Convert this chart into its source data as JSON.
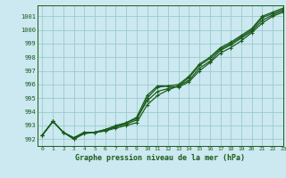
{
  "title": "Graphe pression niveau de la mer (hPa)",
  "bg_color": "#cce8f0",
  "grid_color": "#99cccc",
  "line_color": "#1a5c1a",
  "xlim": [
    -0.5,
    23
  ],
  "ylim": [
    991.5,
    1001.8
  ],
  "xticks": [
    0,
    1,
    2,
    3,
    4,
    5,
    6,
    7,
    8,
    9,
    10,
    11,
    12,
    13,
    14,
    15,
    16,
    17,
    18,
    19,
    20,
    21,
    22,
    23
  ],
  "yticks": [
    992,
    993,
    994,
    995,
    996,
    997,
    998,
    999,
    1000,
    1001
  ],
  "series": [
    [
      992.3,
      993.3,
      992.5,
      992.1,
      992.5,
      992.5,
      992.6,
      992.9,
      993.1,
      993.4,
      995.0,
      995.8,
      995.9,
      995.8,
      996.2,
      997.0,
      997.6,
      998.3,
      998.7,
      999.2,
      999.8,
      1000.5,
      1001.0,
      1001.3
    ],
    [
      992.3,
      993.3,
      992.5,
      992.0,
      992.5,
      992.5,
      992.6,
      992.8,
      993.0,
      993.2,
      994.5,
      995.2,
      995.6,
      995.9,
      996.3,
      997.2,
      997.7,
      998.5,
      998.9,
      999.4,
      999.9,
      1000.7,
      1001.1,
      1001.4
    ],
    [
      992.3,
      993.3,
      992.5,
      992.0,
      992.4,
      992.5,
      992.7,
      992.9,
      993.2,
      993.5,
      994.8,
      995.5,
      995.7,
      995.9,
      996.5,
      997.4,
      997.9,
      998.6,
      999.0,
      999.5,
      1000.0,
      1000.9,
      1001.2,
      1001.5
    ],
    [
      992.3,
      993.3,
      992.5,
      992.1,
      992.5,
      992.5,
      992.7,
      993.0,
      993.2,
      993.6,
      995.2,
      995.9,
      995.9,
      996.0,
      996.6,
      997.5,
      998.0,
      998.7,
      999.1,
      999.6,
      1000.1,
      1001.0,
      1001.3,
      1001.6
    ]
  ]
}
